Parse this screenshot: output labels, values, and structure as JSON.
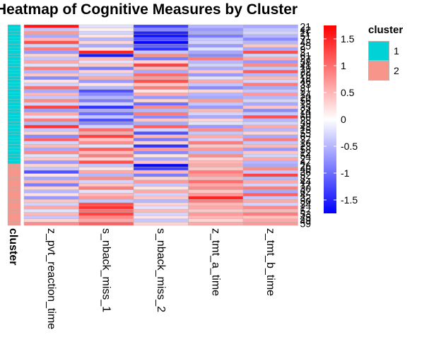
{
  "chart_data": {
    "type": "heatmap",
    "title": "Heatmap of Cognitive Measures by Cluster",
    "columns": [
      "z_pvt_reaction_time",
      "s_nback_miss_1",
      "s_nback_miss_2",
      "z_tmt_a_time",
      "z_tmt_b_time"
    ],
    "annotation": {
      "label": "cluster",
      "legend_title": "cluster",
      "levels": [
        {
          "label": "1",
          "color": "#00d2d6"
        },
        {
          "label": "2",
          "color": "#f7958b"
        }
      ],
      "counts": {
        "1": 43,
        "2": 19
      }
    },
    "colorbar": {
      "ticks": [
        1.5,
        1,
        0.5,
        0,
        -0.5,
        -1,
        -1.5
      ],
      "tick_labels": [
        "1.5",
        "1",
        "0.5",
        "0",
        "-0.5",
        "-1",
        "-1.5"
      ],
      "range": [
        -1.75,
        1.75
      ],
      "low_color": "#0000ff",
      "mid_color": "#ffffff",
      "high_color": "#ff0000"
    },
    "row_labels": [
      "21",
      "42",
      "11",
      "51",
      "7",
      "48",
      "25",
      "9",
      "3",
      "61",
      "27",
      "38",
      "41",
      "19",
      "22",
      "29",
      "18",
      "46",
      "33",
      "31",
      "5",
      "14",
      "20",
      "56",
      "13",
      "35",
      "24",
      "10",
      "60",
      "28",
      "39",
      "43",
      "15",
      "55",
      "6",
      "37",
      "16",
      "23",
      "58",
      "12",
      "54",
      "2",
      "47",
      "26",
      "40",
      "36",
      "52",
      "8",
      "44",
      "17",
      "30",
      "62",
      "4",
      "32",
      "50",
      "34",
      "1",
      "57",
      "53",
      "45",
      "49",
      "59"
    ],
    "row_cluster": [
      "1",
      "1",
      "1",
      "1",
      "1",
      "1",
      "1",
      "1",
      "1",
      "1",
      "1",
      "1",
      "1",
      "1",
      "1",
      "1",
      "1",
      "1",
      "1",
      "1",
      "1",
      "1",
      "1",
      "1",
      "1",
      "1",
      "1",
      "1",
      "1",
      "1",
      "1",
      "1",
      "1",
      "1",
      "1",
      "1",
      "1",
      "1",
      "1",
      "1",
      "1",
      "1",
      "1",
      "2",
      "2",
      "2",
      "2",
      "2",
      "2",
      "2",
      "2",
      "2",
      "2",
      "2",
      "2",
      "2",
      "2",
      "2",
      "2",
      "2",
      "2",
      "2"
    ],
    "values": [
      [
        1.6,
        -0.2,
        -1.3,
        -0.5,
        -0.6
      ],
      [
        -0.4,
        0.1,
        -0.8,
        -0.7,
        -0.4
      ],
      [
        0.7,
        -0.3,
        -1.5,
        -0.6,
        -0.3
      ],
      [
        -0.6,
        0.2,
        -1.6,
        -0.9,
        -0.5
      ],
      [
        0.5,
        -0.5,
        -1.2,
        -0.4,
        -0.8
      ],
      [
        1.2,
        0.3,
        -1.7,
        -0.3,
        -0.5
      ],
      [
        -0.3,
        -0.6,
        -1.1,
        -0.7,
        0.4
      ],
      [
        0.9,
        0.2,
        -1.4,
        -0.2,
        -0.6
      ],
      [
        -0.7,
        1.5,
        -0.4,
        -0.6,
        1.2
      ],
      [
        0.3,
        -1.6,
        0.8,
        -0.8,
        -0.3
      ],
      [
        -0.4,
        0.5,
        -0.9,
        0.9,
        0.6
      ],
      [
        0.6,
        -0.2,
        0.3,
        -0.5,
        -0.7
      ],
      [
        -0.2,
        0.4,
        1.3,
        -0.3,
        0.8
      ],
      [
        0.9,
        -0.9,
        0.5,
        -0.6,
        -0.4
      ],
      [
        -0.5,
        0.3,
        -0.6,
        0.4,
        1.1
      ],
      [
        0.4,
        -0.4,
        1.0,
        -0.7,
        -0.5
      ],
      [
        -0.8,
        0.6,
        0.7,
        -0.2,
        0.5
      ],
      [
        0.2,
        -0.7,
        1.2,
        0.6,
        -0.3
      ],
      [
        -0.3,
        0.2,
        0.4,
        -0.4,
        0.9
      ],
      [
        1.0,
        -0.5,
        0.9,
        -0.8,
        -0.6
      ],
      [
        -0.6,
        -1.2,
        0.2,
        0.3,
        -0.4
      ],
      [
        0.5,
        -0.8,
        0.6,
        -0.5,
        0.7
      ],
      [
        -0.4,
        -0.5,
        -0.7,
        -0.6,
        -0.5
      ],
      [
        0.8,
        -0.9,
        0.3,
        0.7,
        -0.3
      ],
      [
        -0.3,
        -0.3,
        -1.0,
        -0.4,
        -0.6
      ],
      [
        1.3,
        -1.4,
        0.8,
        -0.7,
        0.4
      ],
      [
        -0.7,
        -0.6,
        -0.5,
        0.5,
        -0.8
      ],
      [
        0.6,
        -1.0,
        0.9,
        -0.3,
        -0.4
      ],
      [
        -0.2,
        -0.4,
        -0.8,
        -0.6,
        1.2
      ],
      [
        0.9,
        -1.2,
        0.4,
        0.3,
        -0.5
      ],
      [
        -0.5,
        -0.8,
        -0.6,
        -0.2,
        -0.3
      ],
      [
        1.4,
        -0.3,
        1.1,
        -0.7,
        0.6
      ],
      [
        -0.4,
        1.0,
        -0.3,
        0.8,
        -0.5
      ],
      [
        0.3,
        0.6,
        -1.2,
        -0.4,
        0.3
      ],
      [
        -0.8,
        1.3,
        0.5,
        0.6,
        -0.6
      ],
      [
        1.1,
        0.4,
        -0.9,
        -0.3,
        0.9
      ],
      [
        -0.3,
        0.8,
        0.3,
        0.9,
        -0.4
      ],
      [
        0.5,
        -0.2,
        -1.4,
        0.4,
        0.5
      ],
      [
        -0.6,
        1.1,
        0.7,
        0.7,
        -0.7
      ],
      [
        0.8,
        0.5,
        -0.8,
        -0.5,
        0.4
      ],
      [
        -0.2,
        0.9,
        0.2,
        0.8,
        -0.3
      ],
      [
        0.4,
        0.3,
        -0.6,
        0.3,
        0.6
      ],
      [
        -0.7,
        1.2,
        0.4,
        0.5,
        -0.5
      ],
      [
        0.3,
        -0.4,
        -1.7,
        0.6,
        -0.6
      ],
      [
        -0.4,
        0.2,
        -1.3,
        0.4,
        0.8
      ],
      [
        -1.2,
        0.6,
        0.5,
        0.9,
        -0.4
      ],
      [
        0.2,
        -0.5,
        -0.9,
        0.7,
        1.3
      ],
      [
        -0.6,
        0.8,
        0.3,
        0.5,
        -0.5
      ],
      [
        0.5,
        -0.3,
        0.7,
        1.0,
        0.6
      ],
      [
        -0.9,
        0.4,
        -0.4,
        0.6,
        -0.3
      ],
      [
        0.3,
        0.9,
        0.2,
        0.8,
        0.9
      ],
      [
        -0.5,
        -0.2,
        0.6,
        0.4,
        -0.6
      ],
      [
        0.2,
        0.5,
        -0.3,
        0.7,
        1.1
      ],
      [
        -0.7,
        0.7,
        0.4,
        1.5,
        -0.4
      ],
      [
        0.4,
        -0.4,
        -0.5,
        0.9,
        0.6
      ],
      [
        -0.3,
        1.2,
        0.3,
        0.5,
        -0.3
      ],
      [
        0.6,
        1.4,
        -0.2,
        0.6,
        0.8
      ],
      [
        -0.2,
        1.0,
        0.5,
        0.4,
        0.5
      ],
      [
        0.5,
        1.3,
        -0.3,
        0.7,
        0.9
      ],
      [
        -0.4,
        0.8,
        0.2,
        0.5,
        0.4
      ],
      [
        0.3,
        0.6,
        -0.4,
        0.3,
        0.6
      ],
      [
        0.8,
        1.1,
        0.3,
        0.6,
        0.7
      ]
    ]
  }
}
